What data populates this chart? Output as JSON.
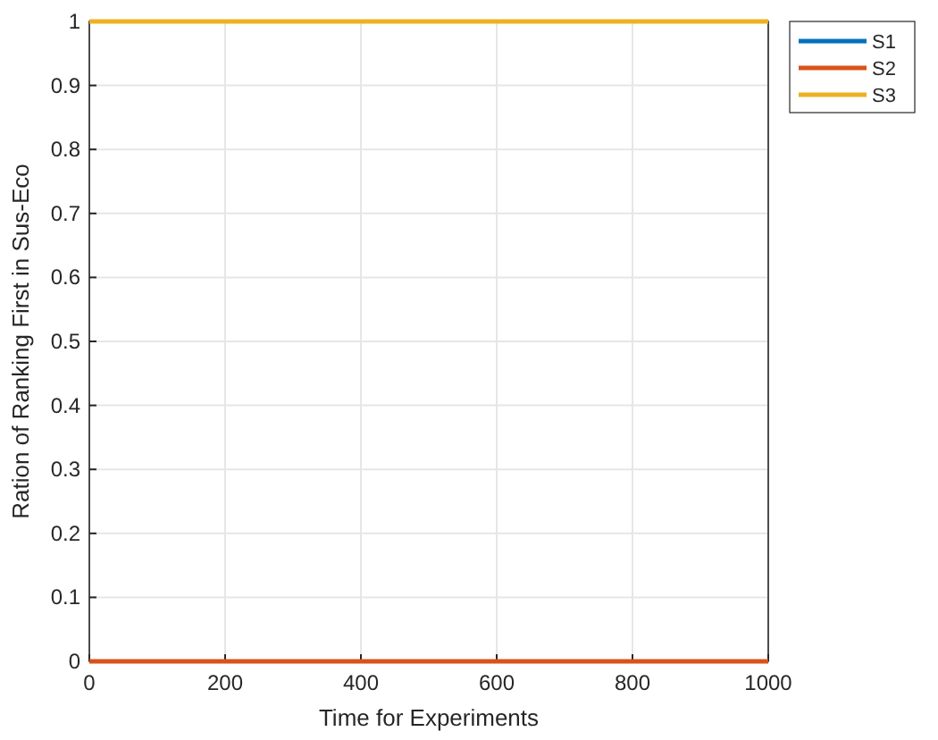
{
  "chart_data": {
    "type": "line",
    "xlabel": "Time for Experiments",
    "ylabel": "Ration of Ranking First in Sus-Eco",
    "x": [
      0,
      1000
    ],
    "series": [
      {
        "name": "S1",
        "color": "#0072bd",
        "values": [
          null,
          null
        ]
      },
      {
        "name": "S2",
        "color": "#d95319",
        "values": [
          0,
          0
        ]
      },
      {
        "name": "S3",
        "color": "#edb120",
        "values": [
          1,
          1
        ]
      }
    ],
    "xlim": [
      0,
      1000
    ],
    "xticks": [
      0,
      200,
      400,
      600,
      800,
      1000
    ],
    "ylim": [
      0,
      1
    ],
    "yticks": [
      0,
      0.1,
      0.2,
      0.3,
      0.4,
      0.5,
      0.6,
      0.7,
      0.8,
      0.9,
      1
    ],
    "grid": true,
    "legend": "top right",
    "line_style": "solid",
    "marker": "none"
  }
}
